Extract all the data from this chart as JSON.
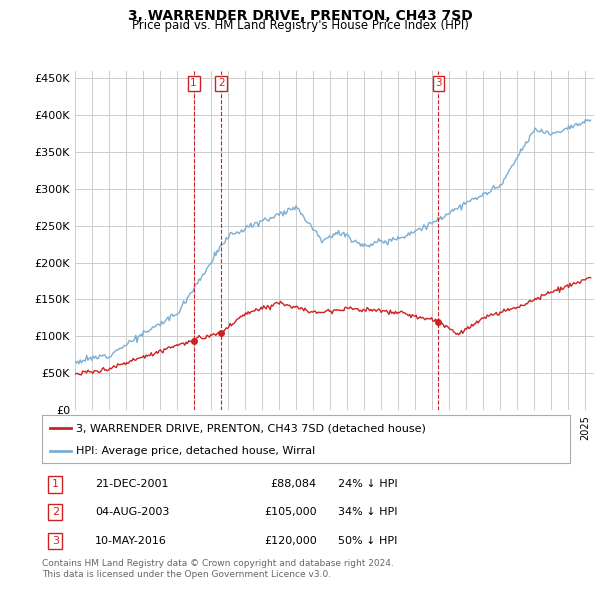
{
  "title": "3, WARRENDER DRIVE, PRENTON, CH43 7SD",
  "subtitle": "Price paid vs. HM Land Registry's House Price Index (HPI)",
  "hpi_color": "#7aaed4",
  "price_color": "#cc2222",
  "background_color": "#ffffff",
  "grid_color": "#cccccc",
  "ylim": [
    0,
    460000
  ],
  "yticks": [
    0,
    50000,
    100000,
    150000,
    200000,
    250000,
    300000,
    350000,
    400000,
    450000
  ],
  "ytick_labels": [
    "£0",
    "£50K",
    "£100K",
    "£150K",
    "£200K",
    "£250K",
    "£300K",
    "£350K",
    "£400K",
    "£450K"
  ],
  "sales": [
    {
      "num": 1,
      "date": "21-DEC-2001",
      "price": 88084,
      "pct": "24%",
      "dir": "↓",
      "x_year": 2001.97
    },
    {
      "num": 2,
      "date": "04-AUG-2003",
      "price": 105000,
      "pct": "34%",
      "dir": "↓",
      "x_year": 2003.59
    },
    {
      "num": 3,
      "date": "10-MAY-2016",
      "price": 120000,
      "pct": "50%",
      "dir": "↓",
      "x_year": 2016.36
    }
  ],
  "legend_label_red": "3, WARRENDER DRIVE, PRENTON, CH43 7SD (detached house)",
  "legend_label_blue": "HPI: Average price, detached house, Wirral",
  "footer_line1": "Contains HM Land Registry data © Crown copyright and database right 2024.",
  "footer_line2": "This data is licensed under the Open Government Licence v3.0.",
  "xlim_start": 1995,
  "xlim_end": 2025.5
}
